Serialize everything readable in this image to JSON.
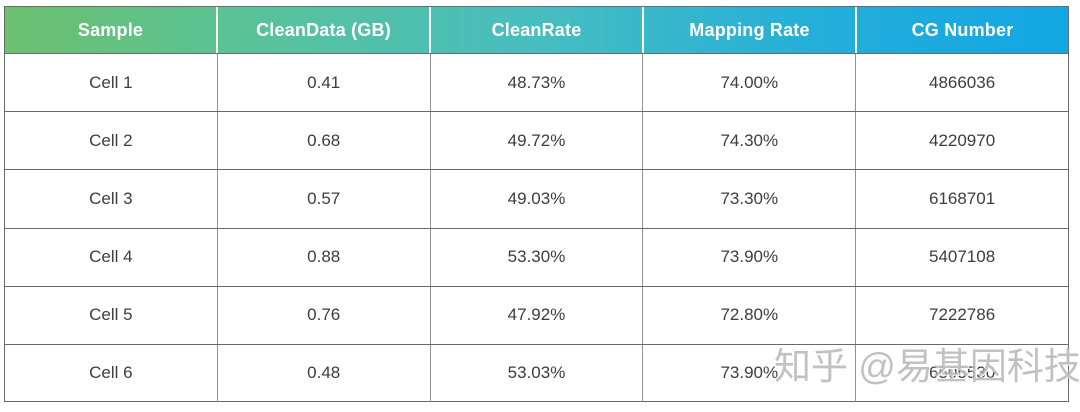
{
  "chart_data": {
    "type": "table",
    "columns": [
      "Sample",
      "CleanData (GB)",
      "CleanRate",
      "Mapping Rate",
      "CG Number"
    ],
    "rows": [
      [
        "Cell 1",
        "0.41",
        "48.73%",
        "74.00%",
        "4866036"
      ],
      [
        "Cell 2",
        "0.68",
        "49.72%",
        "74.30%",
        "4220970"
      ],
      [
        "Cell 3",
        "0.57",
        "49.03%",
        "73.30%",
        "6168701"
      ],
      [
        "Cell 4",
        "0.88",
        "53.30%",
        "73.90%",
        "5407108"
      ],
      [
        "Cell 5",
        "0.76",
        "47.92%",
        "72.80%",
        "7222786"
      ],
      [
        "Cell 6",
        "0.48",
        "53.03%",
        "73.90%",
        "6505530"
      ]
    ],
    "samples": [
      "Cell 1",
      "Cell 2",
      "Cell 3",
      "Cell 4",
      "Cell 5",
      "Cell 6"
    ],
    "clean_data_gb": [
      0.41,
      0.68,
      0.57,
      0.88,
      0.76,
      0.48
    ],
    "clean_rate_pct": [
      48.73,
      49.72,
      49.03,
      53.3,
      47.92,
      53.03
    ],
    "mapping_rate_pct": [
      74.0,
      74.3,
      73.3,
      73.9,
      72.8,
      73.9
    ],
    "cg_number": [
      4866036,
      4220970,
      6168701,
      5407108,
      7222786,
      6505530
    ]
  },
  "watermark": {
    "text": "知乎 @易基因科技"
  },
  "colors": {
    "header_gradient": [
      "#6cc06e",
      "#57c29c",
      "#47bec0",
      "#25afd9",
      "#12a6e4"
    ],
    "header_text": "#ffffff",
    "body_text": "#3d3d3d",
    "grid_line": "#6a6a6a",
    "watermark_gray": "#7d7d7d"
  }
}
